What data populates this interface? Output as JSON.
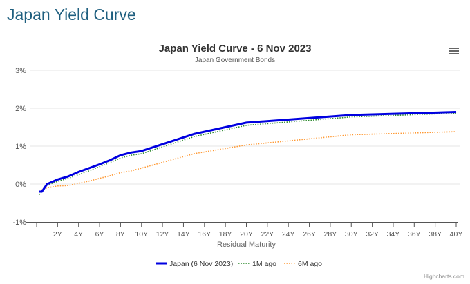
{
  "page": {
    "heading": "Japan Yield Curve",
    "credit": "Highcharts.com"
  },
  "chart_data": {
    "type": "line",
    "title": "Japan Yield Curve - 6 Nov 2023",
    "subtitle": "Japan Government Bonds",
    "xlabel": "Residual Maturity",
    "ylabel": "",
    "xlim": [
      0,
      40
    ],
    "ylim": [
      -1,
      3
    ],
    "x_ticks": [
      "2Y",
      "4Y",
      "6Y",
      "8Y",
      "10Y",
      "12Y",
      "14Y",
      "16Y",
      "18Y",
      "20Y",
      "22Y",
      "24Y",
      "26Y",
      "28Y",
      "30Y",
      "32Y",
      "34Y",
      "36Y",
      "38Y",
      "40Y"
    ],
    "y_ticks": [
      "-1%",
      "0%",
      "1%",
      "2%",
      "3%"
    ],
    "grid": true,
    "legend": "bottom",
    "series": [
      {
        "name": "Japan (6 Nov 2023)",
        "color": "#0000e0",
        "style": "solid",
        "x": [
          0.25,
          0.5,
          1,
          2,
          3,
          4,
          5,
          6,
          7,
          8,
          9,
          10,
          15,
          20,
          30,
          40
        ],
        "values": [
          -0.2,
          -0.2,
          0.0,
          0.12,
          0.2,
          0.32,
          0.42,
          0.52,
          0.63,
          0.76,
          0.83,
          0.87,
          1.32,
          1.62,
          1.82,
          1.9
        ]
      },
      {
        "name": "1M ago",
        "color": "#2e8b2e",
        "style": "dotted",
        "x": [
          0.25,
          0.5,
          1,
          2,
          3,
          4,
          5,
          6,
          7,
          8,
          9,
          10,
          15,
          20,
          30,
          40
        ],
        "values": [
          -0.28,
          -0.2,
          -0.03,
          0.07,
          0.15,
          0.25,
          0.35,
          0.46,
          0.57,
          0.69,
          0.76,
          0.8,
          1.25,
          1.55,
          1.77,
          1.87
        ]
      },
      {
        "name": "6M ago",
        "color": "#ff9933",
        "style": "dotted",
        "x": [
          0.25,
          0.5,
          1,
          2,
          3,
          4,
          5,
          6,
          7,
          8,
          9,
          10,
          15,
          20,
          30,
          40
        ],
        "values": [
          -0.2,
          -0.15,
          -0.1,
          -0.05,
          -0.04,
          0.02,
          0.08,
          0.15,
          0.22,
          0.3,
          0.35,
          0.42,
          0.8,
          1.03,
          1.3,
          1.38
        ]
      }
    ]
  }
}
